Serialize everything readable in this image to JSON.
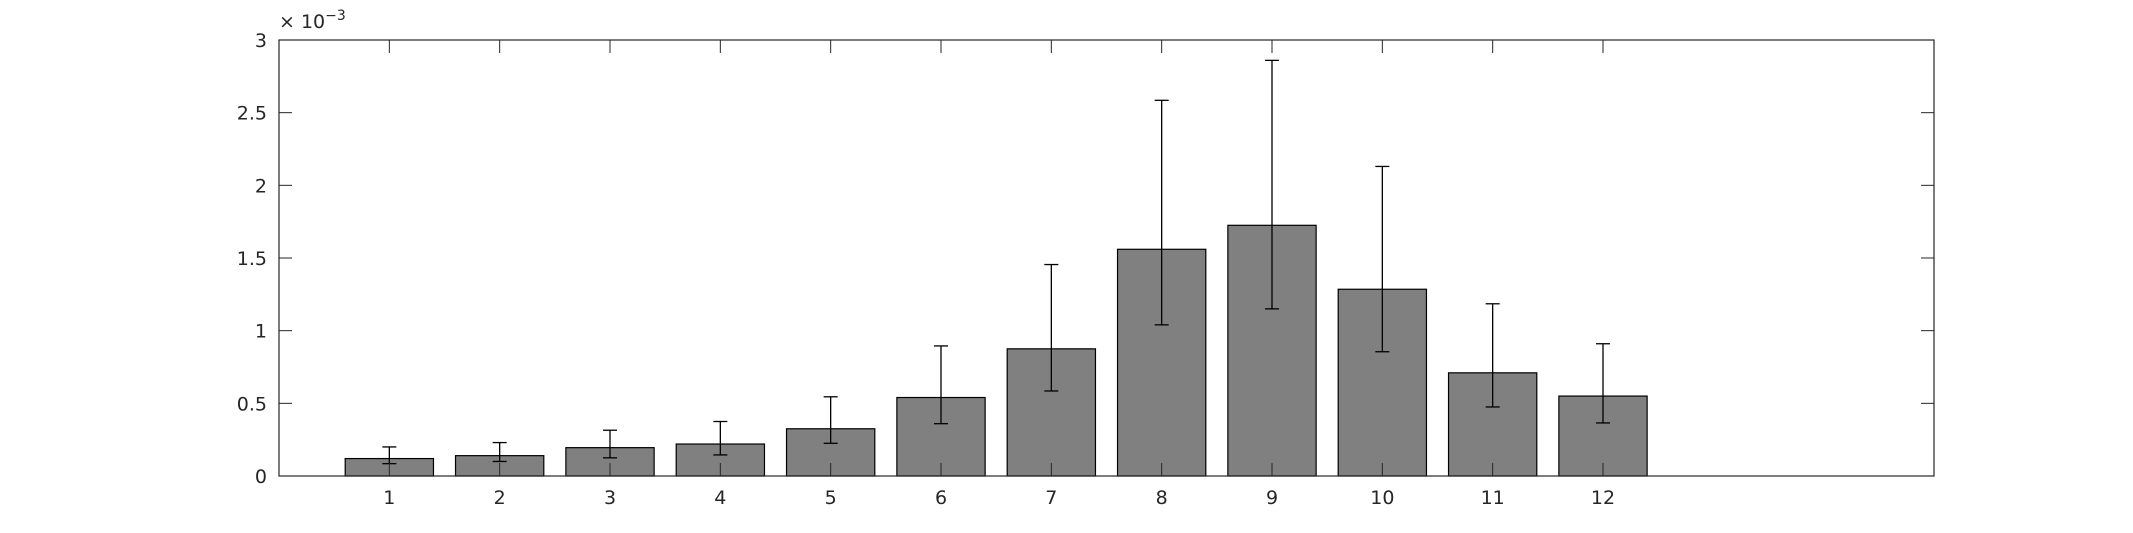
{
  "chart_data": {
    "type": "bar",
    "categories": [
      "1",
      "2",
      "3",
      "4",
      "5",
      "6",
      "7",
      "8",
      "9",
      "10",
      "11",
      "12"
    ],
    "values": [
      0.12,
      0.14,
      0.195,
      0.22,
      0.325,
      0.54,
      0.875,
      1.56,
      1.725,
      1.285,
      0.71,
      0.55
    ],
    "error_lower": [
      0.085,
      0.1,
      0.125,
      0.145,
      0.225,
      0.36,
      0.585,
      1.04,
      1.15,
      0.855,
      0.475,
      0.365
    ],
    "error_upper": [
      0.2,
      0.23,
      0.315,
      0.375,
      0.545,
      0.895,
      1.455,
      2.585,
      2.86,
      2.13,
      1.185,
      0.91
    ],
    "xlim": [
      0,
      15
    ],
    "ylim": [
      0,
      3
    ],
    "yticks": [
      0,
      0.5,
      1,
      1.5,
      2,
      2.5,
      3
    ],
    "ytick_labels": [
      "0",
      "0.5",
      "1",
      "1.5",
      "2",
      "2.5",
      "3"
    ],
    "y_exponent_base": "× 10",
    "y_exponent": "−3",
    "bar_color": "#808080",
    "edge_color": "#000000",
    "grid": false,
    "title": "",
    "xlabel": "",
    "ylabel": ""
  }
}
